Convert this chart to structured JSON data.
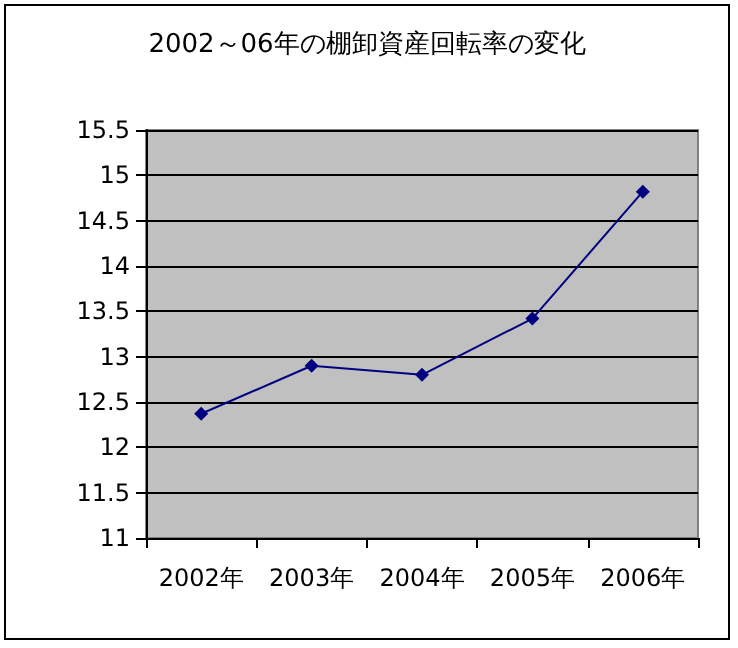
{
  "chart_data": {
    "type": "line",
    "title": "2002～06年の棚卸資産回転率の変化",
    "categories": [
      "2002年",
      "2003年",
      "2004年",
      "2005年",
      "2006年"
    ],
    "series": [
      {
        "color": "#000080",
        "values": [
          12.37,
          12.9,
          12.8,
          13.42,
          14.82
        ]
      }
    ],
    "ylim": [
      11,
      15.5
    ],
    "yticks": [
      11,
      11.5,
      12,
      12.5,
      13,
      13.5,
      14,
      14.5,
      15,
      15.5
    ],
    "grid": "y",
    "marker": "diamond",
    "line_style": "solid"
  }
}
